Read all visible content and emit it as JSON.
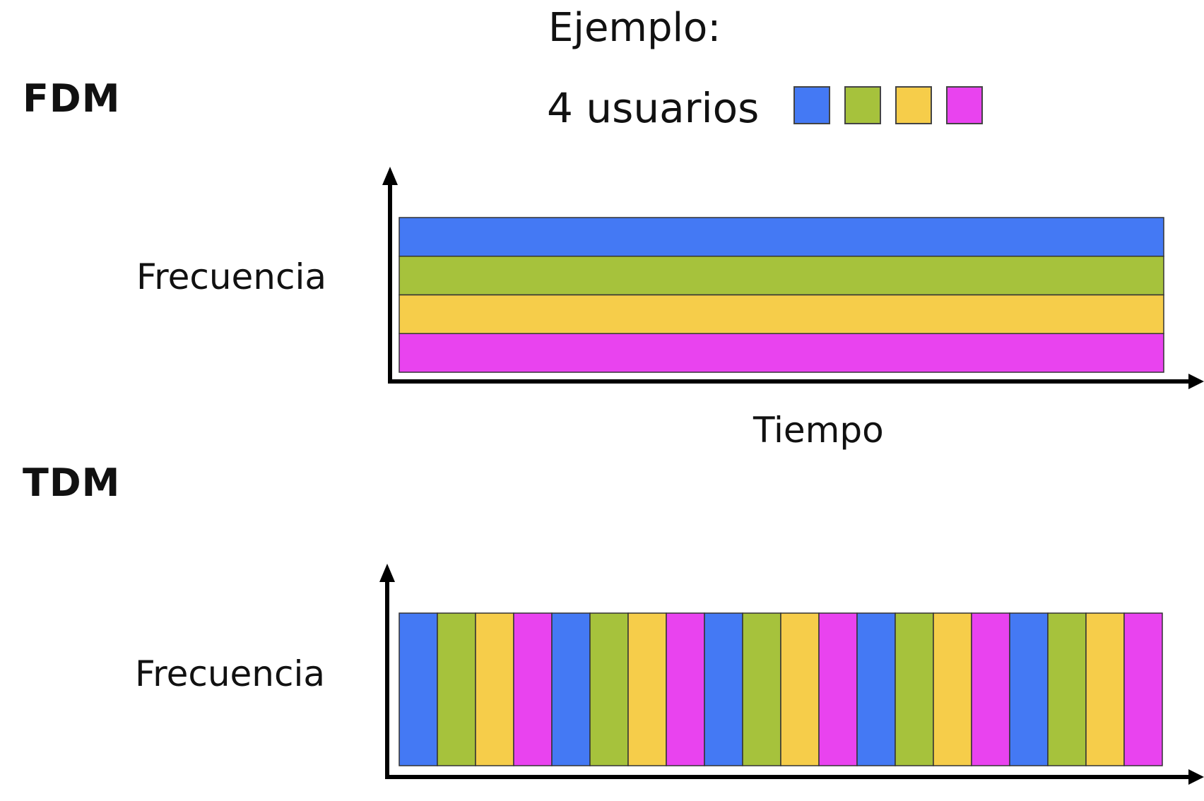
{
  "header": {
    "example_title": "Ejemplo:",
    "users_label": "4 usuarios"
  },
  "users": [
    {
      "color": "#4479f4"
    },
    {
      "color": "#a6c23c"
    },
    {
      "color": "#f6cd4a"
    },
    {
      "color": "#e943ef"
    }
  ],
  "fdm": {
    "title": "FDM",
    "y_label": "Frecuencia",
    "x_label": "Tiempo",
    "bands": [
      0,
      1,
      2,
      3
    ]
  },
  "tdm": {
    "title": "TDM",
    "y_label": "Frecuencia",
    "slots": [
      0,
      1,
      2,
      3,
      0,
      1,
      2,
      3,
      0,
      1,
      2,
      3,
      0,
      1,
      2,
      3,
      0,
      1,
      2,
      3
    ]
  }
}
